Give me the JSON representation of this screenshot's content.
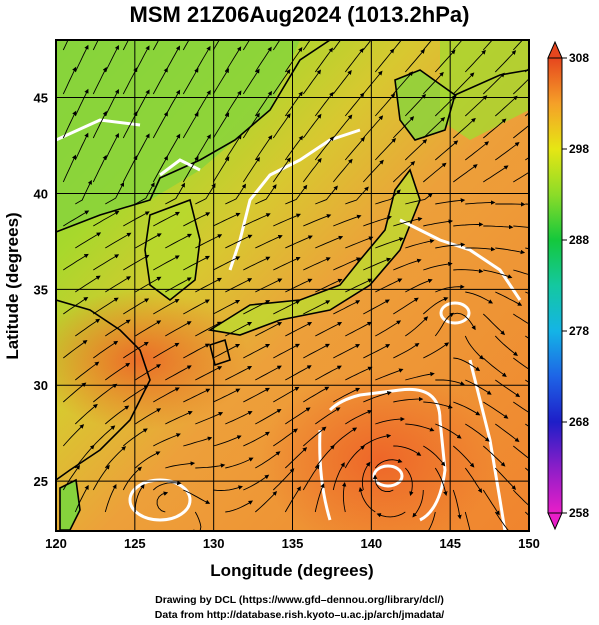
{
  "title": "MSM 21Z06Aug2024 (1013.2hPa)",
  "map": {
    "lon_range": [
      120,
      150
    ],
    "lat_range": [
      22.4,
      48
    ],
    "lon_ticks": [
      120,
      125,
      130,
      135,
      140,
      145,
      150
    ],
    "lat_ticks": [
      25,
      30,
      35,
      40,
      45
    ],
    "lon_tick_labels": [
      "120",
      "125",
      "130",
      "135",
      "140",
      "145",
      "150"
    ],
    "lat_tick_labels": [
      "25",
      "30",
      "35",
      "40",
      "45"
    ],
    "xlabel": "Longitude (degrees)",
    "ylabel": "Latitude  (degrees)",
    "grid": true,
    "overlay": "streamlines"
  },
  "colorbar": {
    "ticks": [
      258,
      268,
      278,
      288,
      298,
      308
    ],
    "tick_labels": [
      "258",
      "268",
      "278",
      "288",
      "298",
      "308"
    ],
    "range": [
      258,
      308
    ],
    "stops": [
      {
        "v": 258,
        "color": "#e81ec8"
      },
      {
        "v": 263,
        "color": "#8b1ec8"
      },
      {
        "v": 268,
        "color": "#1e1ec8"
      },
      {
        "v": 273,
        "color": "#1e64e6"
      },
      {
        "v": 278,
        "color": "#14b4e6"
      },
      {
        "v": 283,
        "color": "#14c8a0"
      },
      {
        "v": 288,
        "color": "#14c83c"
      },
      {
        "v": 293,
        "color": "#8cdc28"
      },
      {
        "v": 298,
        "color": "#e6e614"
      },
      {
        "v": 303,
        "color": "#f5a028"
      },
      {
        "v": 308,
        "color": "#e6461e"
      }
    ]
  },
  "field_colors": {
    "sea_warm": "#f08a32",
    "sea_hot": "#ee6a2a",
    "land_cool": "#7fd23c",
    "land_mid": "#c8dc28",
    "coast": "#000000",
    "contour": "#ffffff"
  },
  "credits": [
    "Drawing by DCL (https://www.gfd–dennou.org/library/dcl/)",
    "Data from http://database.rish.kyoto–u.ac.jp/arch/jmadata/"
  ]
}
